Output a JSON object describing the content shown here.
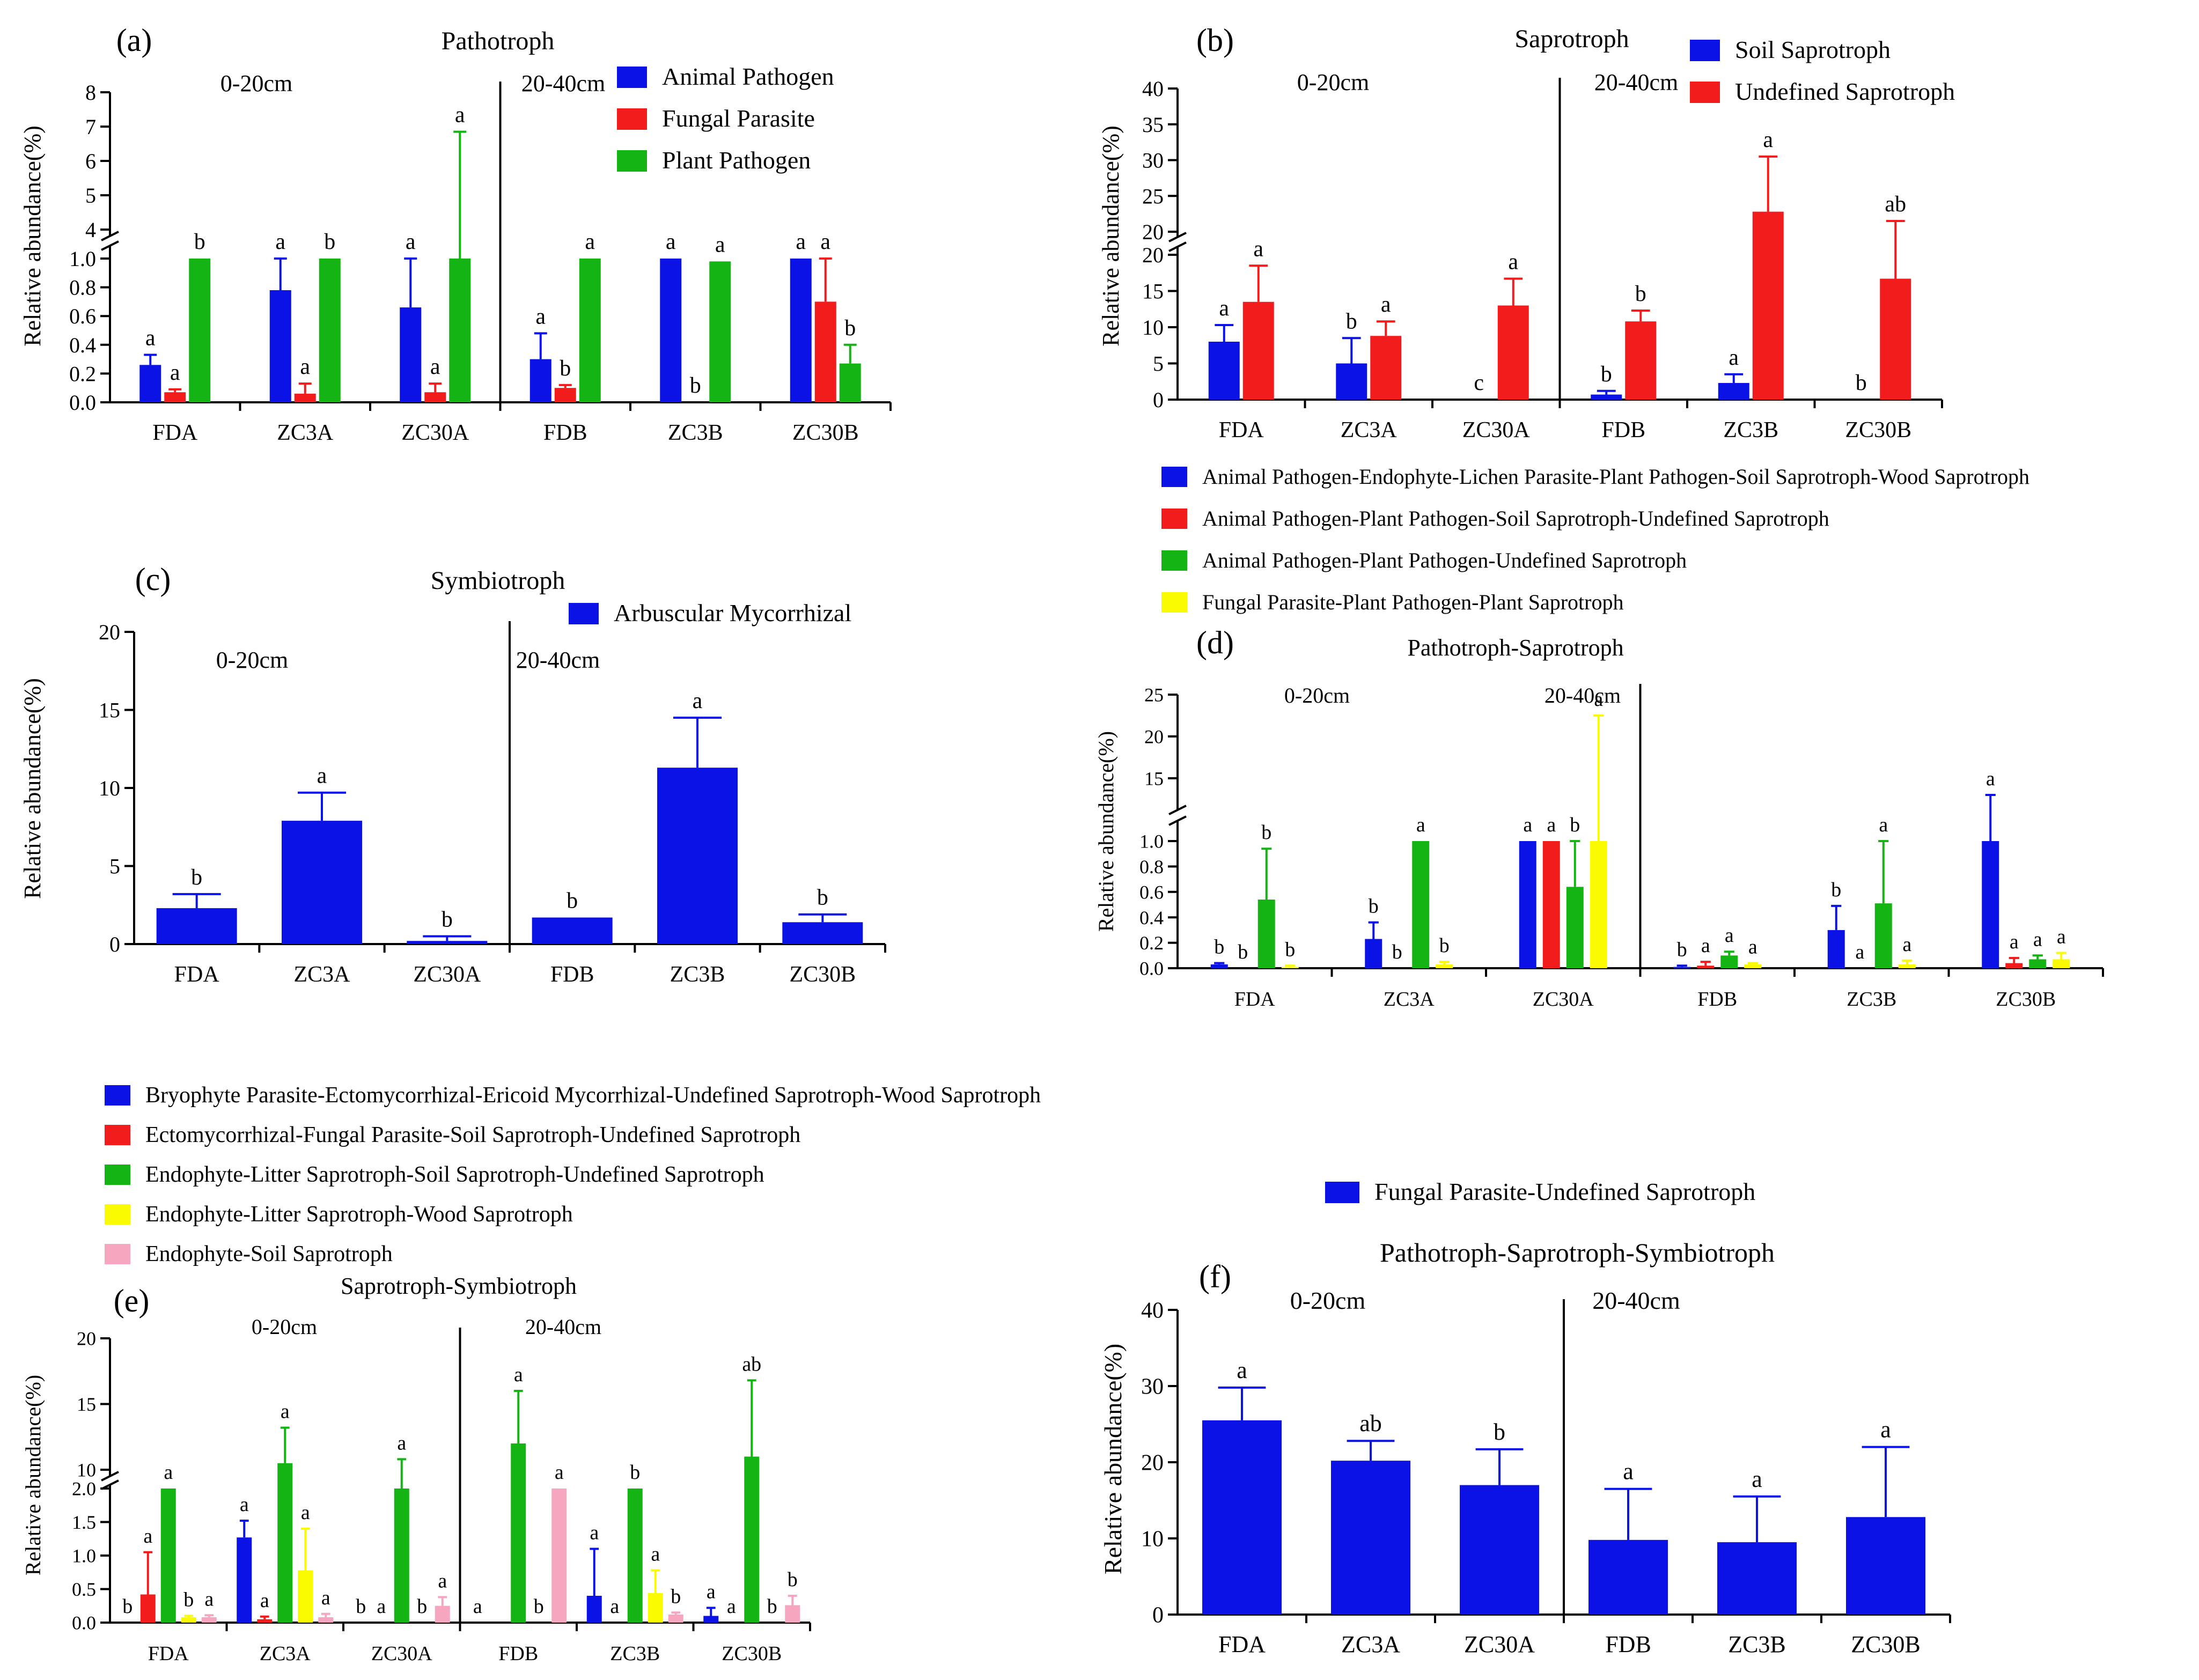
{
  "colors": {
    "blue": "#0a12e6",
    "red": "#f21c1c",
    "green": "#14b414",
    "yellow": "#fafa00",
    "pink": "#f7a6c0",
    "axis": "#000000"
  },
  "chart_data": [
    {
      "id": "a",
      "type": "bar",
      "panel_label": "(a)",
      "title": "Pathotroph",
      "ylabel": "Relative abundance(%)",
      "categories": [
        "FDA",
        "ZC3A",
        "ZC30A",
        "FDB",
        "ZC3B",
        "ZC30B"
      ],
      "depth_labels": [
        "0-20cm",
        "20-40cm"
      ],
      "lower_ticks": [
        "0.0",
        "0.2",
        "0.4",
        "0.6",
        "0.8",
        "1.0"
      ],
      "upper_ticks": [
        "4",
        "5",
        "6",
        "7",
        "8"
      ],
      "lower_range": [
        0,
        1.0
      ],
      "upper_range": [
        4,
        8
      ],
      "series": [
        {
          "name": "Animal Pathogen",
          "color": "blue",
          "values": [
            0.26,
            0.78,
            0.66,
            0.3,
            1.0,
            1.0
          ],
          "errors": [
            0.33,
            1.0,
            1.0,
            0.48,
            1.0,
            1.0
          ],
          "letters": [
            "a",
            "a",
            "a",
            "a",
            "a",
            "a"
          ]
        },
        {
          "name": "Fungal Parasite",
          "color": "red",
          "values": [
            0.07,
            0.06,
            0.07,
            0.1,
            0.0,
            0.7
          ],
          "errors": [
            0.09,
            0.13,
            0.13,
            0.12,
            0.0,
            1.0
          ],
          "letters": [
            "a",
            "a",
            "a",
            "b",
            "b",
            "a"
          ]
        },
        {
          "name": "Plant Pathogen",
          "color": "green",
          "values": [
            1.0,
            1.0,
            1.0,
            1.0,
            0.98,
            0.27
          ],
          "errors": [
            1.0,
            1.0,
            6.85,
            1.0,
            0.98,
            0.4
          ],
          "letters": [
            "b",
            "b",
            "a",
            "a",
            "a",
            "b"
          ]
        }
      ]
    },
    {
      "id": "b",
      "type": "bar",
      "panel_label": "(b)",
      "title": "Saprotroph",
      "ylabel": "Relative abundance(%)",
      "categories": [
        "FDA",
        "ZC3A",
        "ZC30A",
        "FDB",
        "ZC3B",
        "ZC30B"
      ],
      "depth_labels": [
        "0-20cm",
        "20-40cm"
      ],
      "lower_ticks": [
        "0",
        "5",
        "10",
        "15",
        "20"
      ],
      "upper_ticks": [
        "20",
        "25",
        "30",
        "35",
        "40"
      ],
      "lower_range": [
        0,
        20
      ],
      "upper_range": [
        20,
        40
      ],
      "series": [
        {
          "name": "Soil Saprotroph",
          "color": "blue",
          "values": [
            8.0,
            5.0,
            0.0,
            0.7,
            2.3,
            0.0
          ],
          "errors": [
            10.3,
            8.5,
            0.0,
            1.2,
            3.5,
            0.0
          ],
          "letters": [
            "a",
            "b",
            "c",
            "b",
            "a",
            "b"
          ]
        },
        {
          "name": "Undefined Saprotroph",
          "color": "red",
          "values": [
            13.5,
            8.8,
            13.0,
            10.8,
            22.8,
            16.7
          ],
          "errors": [
            18.5,
            10.8,
            16.7,
            12.3,
            30.5,
            21.5
          ],
          "letters": [
            "a",
            "a",
            "a",
            "b",
            "a",
            "ab"
          ]
        }
      ]
    },
    {
      "id": "c",
      "type": "bar",
      "panel_label": "(c)",
      "title": "Symbiotroph",
      "ylabel": "Relative abundance(%)",
      "categories": [
        "FDA",
        "ZC3A",
        "ZC30A",
        "FDB",
        "ZC3B",
        "ZC30B"
      ],
      "depth_labels": [
        "0-20cm",
        "20-40cm"
      ],
      "ticks": [
        "0",
        "5",
        "10",
        "15",
        "20"
      ],
      "ylim": [
        0,
        20
      ],
      "series": [
        {
          "name": "Arbuscular Mycorrhizal",
          "color": "blue",
          "values": [
            2.3,
            7.9,
            0.2,
            1.7,
            11.3,
            1.4
          ],
          "errors": [
            3.2,
            9.7,
            0.5,
            1.7,
            14.5,
            1.9
          ],
          "letters": [
            "b",
            "a",
            "b",
            "b",
            "a",
            "b"
          ]
        }
      ]
    },
    {
      "id": "d",
      "type": "bar",
      "panel_label": "(d)",
      "title": "Pathotroph-Saprotroph",
      "ylabel": "Relative abundance(%)",
      "categories": [
        "FDA",
        "ZC3A",
        "ZC30A",
        "FDB",
        "ZC3B",
        "ZC30B"
      ],
      "depth_labels": [
        "0-20cm",
        "20-40cm"
      ],
      "lower_ticks": [
        "0.0",
        "0.2",
        "0.4",
        "0.6",
        "0.8",
        "1.0"
      ],
      "upper_ticks": [
        "15",
        "20",
        "25"
      ],
      "lower_range": [
        0,
        1.0
      ],
      "upper_range": [
        13,
        25
      ],
      "series": [
        {
          "name": "Animal Pathogen-Endophyte-Lichen Parasite-Plant Pathogen-Soil Saprotroph-Wood Saprotroph",
          "color": "blue",
          "values": [
            0.03,
            0.23,
            1.0,
            0.01,
            0.3,
            1.0
          ],
          "errors": [
            0.04,
            0.36,
            1.0,
            0.02,
            0.49,
            13.0
          ],
          "letters": [
            "b",
            "b",
            "a",
            "b",
            "b",
            "a"
          ]
        },
        {
          "name": "Animal Pathogen-Plant Pathogen-Soil Saprotroph-Undefined Saprotroph",
          "color": "red",
          "values": [
            0.0,
            0.0,
            1.0,
            0.02,
            0.0,
            0.04
          ],
          "errors": [
            0.0,
            0.0,
            1.0,
            0.05,
            0.0,
            0.08
          ],
          "letters": [
            "b",
            "b",
            "a",
            "a",
            "a",
            "a"
          ]
        },
        {
          "name": "Animal Pathogen-Plant Pathogen-Undefined Saprotroph",
          "color": "green",
          "values": [
            0.54,
            1.0,
            0.64,
            0.1,
            0.51,
            0.07
          ],
          "errors": [
            0.94,
            1.0,
            1.0,
            0.13,
            1.0,
            0.1
          ],
          "letters": [
            "b",
            "a",
            "b",
            "a",
            "a",
            "a"
          ]
        },
        {
          "name": "Fungal Parasite-Plant Pathogen-Plant Saprotroph",
          "color": "yellow",
          "values": [
            0.01,
            0.03,
            1.0,
            0.03,
            0.03,
            0.07
          ],
          "errors": [
            0.02,
            0.05,
            22.5,
            0.04,
            0.06,
            0.12
          ],
          "letters": [
            "b",
            "b",
            "a",
            "a",
            "a",
            "a"
          ]
        }
      ]
    },
    {
      "id": "e",
      "type": "bar",
      "panel_label": "(e)",
      "title": "Saprotroph-Symbiotroph",
      "ylabel": "Relative abundance(%)",
      "categories": [
        "FDA",
        "ZC3A",
        "ZC30A",
        "FDB",
        "ZC3B",
        "ZC30B"
      ],
      "depth_labels": [
        "0-20cm",
        "20-40cm"
      ],
      "lower_ticks": [
        "0.0",
        "0.5",
        "1.0",
        "1.5",
        "2.0"
      ],
      "upper_ticks": [
        "10",
        "15",
        "20"
      ],
      "lower_range": [
        0,
        2.0
      ],
      "upper_range": [
        10,
        20
      ],
      "series": [
        {
          "name": "Bryophyte Parasite-Ectomycorrhizal-Ericoid Mycorrhizal-Undefined Saprotroph-Wood Saprotroph",
          "color": "blue",
          "values": [
            0.0,
            1.27,
            0.0,
            0.0,
            0.4,
            0.1
          ],
          "errors": [
            0.0,
            1.52,
            0.0,
            0.0,
            1.1,
            0.22
          ],
          "letters": [
            "b",
            "a",
            "b",
            "a",
            "a",
            "a"
          ]
        },
        {
          "name": "Ectomycorrhizal-Fungal Parasite-Soil Saprotroph-Undefined Saprotroph",
          "color": "red",
          "values": [
            0.42,
            0.05,
            0.0,
            0.0,
            0.0,
            0.0
          ],
          "errors": [
            1.05,
            0.09,
            0.0,
            0.0,
            0.0,
            0.0
          ],
          "letters": [
            "a",
            "a",
            "a",
            "",
            "a",
            "a"
          ]
        },
        {
          "name": "Endophyte-Litter Saprotroph-Soil Saprotroph-Undefined Saprotroph",
          "color": "green",
          "values": [
            2.0,
            10.5,
            2.0,
            12.0,
            2.0,
            11.0
          ],
          "errors": [
            2.0,
            13.2,
            10.8,
            16.0,
            2.0,
            16.8
          ],
          "letters": [
            "a",
            "a",
            "a",
            "a",
            "b",
            "ab"
          ]
        },
        {
          "name": "Endophyte-Litter Saprotroph-Wood Saprotroph",
          "color": "yellow",
          "values": [
            0.08,
            0.78,
            0.0,
            0.0,
            0.44,
            0.0
          ],
          "errors": [
            0.1,
            1.4,
            0.0,
            0.0,
            0.78,
            0.0
          ],
          "letters": [
            "b",
            "a",
            "b",
            "b",
            "a",
            "b"
          ]
        },
        {
          "name": "Endophyte-Soil Saprotroph",
          "color": "pink",
          "values": [
            0.08,
            0.08,
            0.25,
            2.0,
            0.12,
            0.26
          ],
          "errors": [
            0.11,
            0.13,
            0.38,
            2.0,
            0.15,
            0.4
          ],
          "letters": [
            "a",
            "a",
            "a",
            "a",
            "b",
            "b"
          ]
        }
      ]
    },
    {
      "id": "f",
      "type": "bar",
      "panel_label": "(f)",
      "title": "Pathotroph-Saprotroph-Symbiotroph",
      "ylabel": "Relative abundance(%)",
      "categories": [
        "FDA",
        "ZC3A",
        "ZC30A",
        "FDB",
        "ZC3B",
        "ZC30B"
      ],
      "depth_labels": [
        "0-20cm",
        "20-40cm"
      ],
      "ticks": [
        "0",
        "10",
        "20",
        "30",
        "40"
      ],
      "ylim": [
        0,
        40
      ],
      "series": [
        {
          "name": "Fungal Parasite-Undefined Saprotroph",
          "color": "blue",
          "values": [
            25.5,
            20.2,
            17.0,
            9.8,
            9.5,
            12.8
          ],
          "errors": [
            29.8,
            22.8,
            21.7,
            16.5,
            15.5,
            22.0
          ],
          "letters": [
            "a",
            "ab",
            "b",
            "a",
            "a",
            "a"
          ]
        }
      ]
    }
  ]
}
